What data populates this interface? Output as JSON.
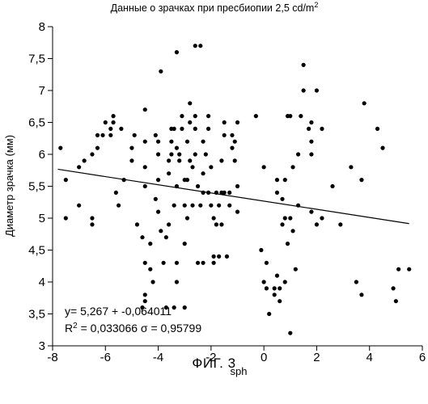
{
  "chart_data": {
    "type": "scatter",
    "title": "Данные о зрачках при пресбиопии 2,5 cd/m",
    "title_superscript": "2",
    "xlabel": "sph",
    "ylabel": "Диаметр зрачка (мм)",
    "xlim": [
      -8,
      6
    ],
    "ylim": [
      3,
      8
    ],
    "x_ticks": [
      -8,
      -6,
      -4,
      -2,
      0,
      2,
      4,
      6
    ],
    "x_tick_labels": [
      "-8",
      "-6",
      "-4",
      "-2",
      "0",
      "2",
      "4",
      "6"
    ],
    "y_ticks": [
      3,
      3.5,
      4,
      4.5,
      5,
      5.5,
      6,
      6.5,
      7,
      7.5,
      8
    ],
    "y_tick_labels": [
      "3",
      "3,5",
      "4",
      "4,5",
      "5",
      "5,5",
      "6",
      "6,5",
      "7",
      "7,5",
      "8"
    ],
    "grid": false,
    "legend": "none",
    "marker_color": "#000000",
    "trendline": {
      "intercept": 5.267,
      "slope": -0.064011,
      "x_range": [
        -7.8,
        5.5
      ]
    },
    "annotations": {
      "equation": "y= 5,267 + -0,064011",
      "r_squared_prefix": "R",
      "r_squared_sup": "2",
      "r_squared_rest": " = 0,033066 σ = 0,95799"
    },
    "points": [
      [
        -7.7,
        6.1
      ],
      [
        -7.5,
        5.6
      ],
      [
        -7.5,
        5.0
      ],
      [
        -7.0,
        5.2
      ],
      [
        -7.0,
        5.8
      ],
      [
        -6.8,
        5.9
      ],
      [
        -6.5,
        5.0
      ],
      [
        -6.5,
        4.9
      ],
      [
        -6.5,
        6.0
      ],
      [
        -6.3,
        6.3
      ],
      [
        -6.3,
        6.1
      ],
      [
        -6.1,
        6.3
      ],
      [
        -6.0,
        6.5
      ],
      [
        -5.8,
        6.3
      ],
      [
        -5.8,
        6.4
      ],
      [
        -5.7,
        6.6
      ],
      [
        -5.7,
        6.5
      ],
      [
        -5.6,
        5.4
      ],
      [
        -5.5,
        5.2
      ],
      [
        -5.4,
        6.4
      ],
      [
        -5.3,
        5.6
      ],
      [
        -5.0,
        5.9
      ],
      [
        -5.0,
        6.1
      ],
      [
        -4.9,
        6.3
      ],
      [
        -4.8,
        4.9
      ],
      [
        -4.6,
        4.7
      ],
      [
        -4.5,
        6.2
      ],
      [
        -4.5,
        6.7
      ],
      [
        -4.5,
        5.8
      ],
      [
        -4.5,
        5.5
      ],
      [
        -4.5,
        4.3
      ],
      [
        -4.5,
        3.8
      ],
      [
        -4.6,
        3.6
      ],
      [
        -4.5,
        3.7
      ],
      [
        -4.3,
        4.2
      ],
      [
        -4.3,
        4.6
      ],
      [
        -4.2,
        4.0
      ],
      [
        -4.1,
        5.3
      ],
      [
        -4.1,
        6.3
      ],
      [
        -4.0,
        5.6
      ],
      [
        -4.0,
        6.0
      ],
      [
        -4.0,
        6.2
      ],
      [
        -4.0,
        5.1
      ],
      [
        -3.9,
        4.8
      ],
      [
        -3.9,
        7.3
      ],
      [
        -3.8,
        4.3
      ],
      [
        -3.7,
        4.7
      ],
      [
        -3.7,
        3.6
      ],
      [
        -3.6,
        4.9
      ],
      [
        -3.6,
        5.7
      ],
      [
        -3.6,
        5.9
      ],
      [
        -3.5,
        6.0
      ],
      [
        -3.5,
        6.4
      ],
      [
        -3.5,
        6.2
      ],
      [
        -3.4,
        6.4
      ],
      [
        -3.4,
        5.2
      ],
      [
        -3.4,
        3.6
      ],
      [
        -3.3,
        7.6
      ],
      [
        -3.3,
        6.1
      ],
      [
        -3.3,
        5.5
      ],
      [
        -3.3,
        4.3
      ],
      [
        -3.3,
        4.0
      ],
      [
        -3.2,
        6.0
      ],
      [
        -3.2,
        5.9
      ],
      [
        -3.1,
        6.4
      ],
      [
        -3.1,
        6.6
      ],
      [
        -3.0,
        5.6
      ],
      [
        -3.0,
        5.2
      ],
      [
        -3.0,
        4.6
      ],
      [
        -3.0,
        3.6
      ],
      [
        -2.9,
        5.0
      ],
      [
        -2.9,
        5.6
      ],
      [
        -2.9,
        6.2
      ],
      [
        -2.8,
        6.5
      ],
      [
        -2.8,
        6.8
      ],
      [
        -2.8,
        5.9
      ],
      [
        -2.7,
        5.8
      ],
      [
        -2.7,
        5.2
      ],
      [
        -2.6,
        7.7
      ],
      [
        -2.6,
        6.6
      ],
      [
        -2.6,
        6.4
      ],
      [
        -2.6,
        6.0
      ],
      [
        -2.5,
        5.5
      ],
      [
        -2.5,
        4.3
      ],
      [
        -2.4,
        7.7
      ],
      [
        -2.4,
        5.2
      ],
      [
        -2.3,
        5.4
      ],
      [
        -2.3,
        6.2
      ],
      [
        -2.3,
        5.7
      ],
      [
        -2.3,
        4.3
      ],
      [
        -2.2,
        6.0
      ],
      [
        -2.1,
        6.4
      ],
      [
        -2.1,
        6.6
      ],
      [
        -2.1,
        5.4
      ],
      [
        -2.0,
        5.2
      ],
      [
        -2.0,
        5.8
      ],
      [
        -1.9,
        5.0
      ],
      [
        -1.9,
        4.4
      ],
      [
        -1.9,
        4.3
      ],
      [
        -1.8,
        5.4
      ],
      [
        -1.8,
        4.9
      ],
      [
        -1.7,
        5.2
      ],
      [
        -1.7,
        4.4
      ],
      [
        -1.6,
        5.9
      ],
      [
        -1.6,
        5.4
      ],
      [
        -1.6,
        4.9
      ],
      [
        -1.5,
        6.5
      ],
      [
        -1.5,
        6.3
      ],
      [
        -1.5,
        5.4
      ],
      [
        -1.4,
        4.4
      ],
      [
        -1.3,
        5.4
      ],
      [
        -1.3,
        5.2
      ],
      [
        -1.2,
        6.3
      ],
      [
        -1.2,
        6.1
      ],
      [
        -1.1,
        6.2
      ],
      [
        -1.1,
        5.9
      ],
      [
        -1.0,
        6.5
      ],
      [
        -1.0,
        5.5
      ],
      [
        -1.0,
        5.1
      ],
      [
        -0.3,
        6.6
      ],
      [
        0.0,
        5.8
      ],
      [
        -0.1,
        4.5
      ],
      [
        0.0,
        4.0
      ],
      [
        0.1,
        4.3
      ],
      [
        0.1,
        3.9
      ],
      [
        0.2,
        3.5
      ],
      [
        0.4,
        3.8
      ],
      [
        0.4,
        3.9
      ],
      [
        0.5,
        4.1
      ],
      [
        0.5,
        5.4
      ],
      [
        0.5,
        5.6
      ],
      [
        0.6,
        3.9
      ],
      [
        0.6,
        3.7
      ],
      [
        0.7,
        4.9
      ],
      [
        0.7,
        5.3
      ],
      [
        0.8,
        4.0
      ],
      [
        0.8,
        5.6
      ],
      [
        0.8,
        5.0
      ],
      [
        0.9,
        4.6
      ],
      [
        0.9,
        6.6
      ],
      [
        1.0,
        3.2
      ],
      [
        1.0,
        5.0
      ],
      [
        1.0,
        6.6
      ],
      [
        1.1,
        4.8
      ],
      [
        1.1,
        5.8
      ],
      [
        1.2,
        4.2
      ],
      [
        1.3,
        6.0
      ],
      [
        1.3,
        5.2
      ],
      [
        1.4,
        6.6
      ],
      [
        1.5,
        7.4
      ],
      [
        1.5,
        7.0
      ],
      [
        1.7,
        6.4
      ],
      [
        1.8,
        6.0
      ],
      [
        1.8,
        6.2
      ],
      [
        1.8,
        6.5
      ],
      [
        1.8,
        5.1
      ],
      [
        2.0,
        7.0
      ],
      [
        2.0,
        4.9
      ],
      [
        2.2,
        5.0
      ],
      [
        2.2,
        6.4
      ],
      [
        2.6,
        5.5
      ],
      [
        2.9,
        4.9
      ],
      [
        3.3,
        5.8
      ],
      [
        3.5,
        4.0
      ],
      [
        3.7,
        3.8
      ],
      [
        3.7,
        5.6
      ],
      [
        3.8,
        6.8
      ],
      [
        4.3,
        6.4
      ],
      [
        4.5,
        6.1
      ],
      [
        4.9,
        3.9
      ],
      [
        5.0,
        3.7
      ],
      [
        5.1,
        4.2
      ],
      [
        5.5,
        4.2
      ]
    ]
  },
  "figure": {
    "caption": "ФИГ. 3"
  }
}
